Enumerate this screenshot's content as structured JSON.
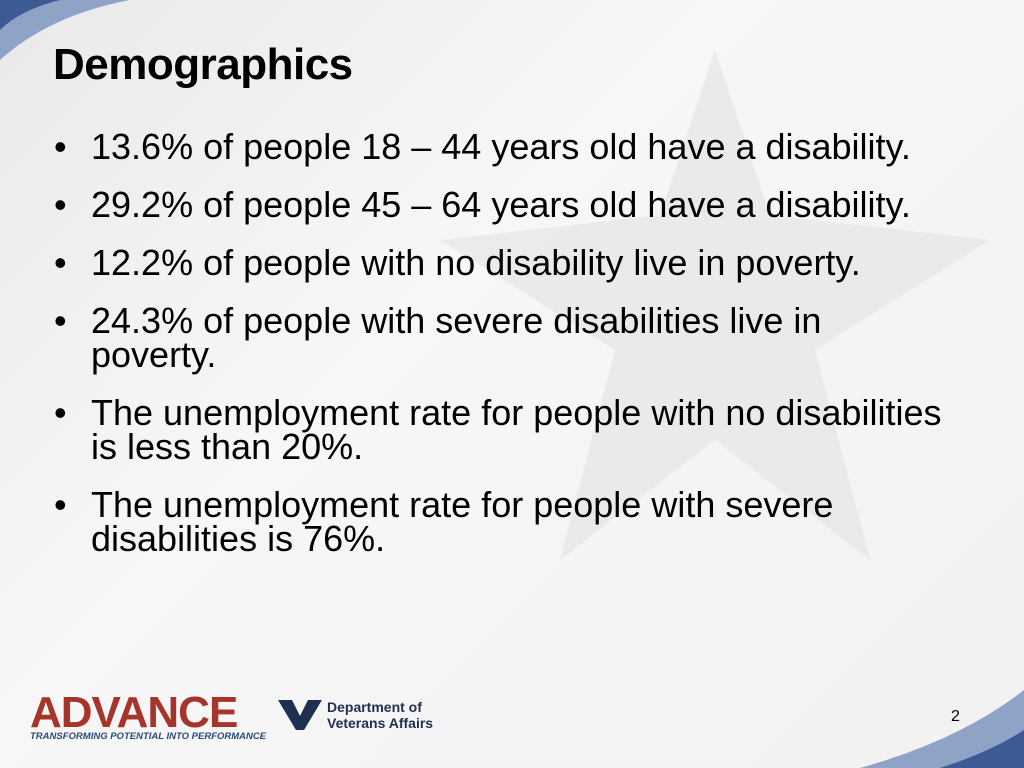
{
  "header": {
    "title": "Demographics"
  },
  "bullets": [
    "13.6% of people 18 – 44 years old have a disability.",
    "29.2% of people 45 – 64 years old have a disability.",
    "12.2% of people with no disability live in poverty.",
    "24.3% of people with severe disabilities live in poverty.",
    "The unemployment rate for people with no disabilities is less than 20%.",
    "The unemployment rate for people with severe disabilities is 76%."
  ],
  "footer": {
    "logo": {
      "name": "ADVANCE",
      "tagline": "TRANSFORMING POTENTIAL INTO PERFORMANCE"
    },
    "va": {
      "line1": "Department of",
      "line2": "Veterans Affairs"
    },
    "page_number": "2"
  }
}
